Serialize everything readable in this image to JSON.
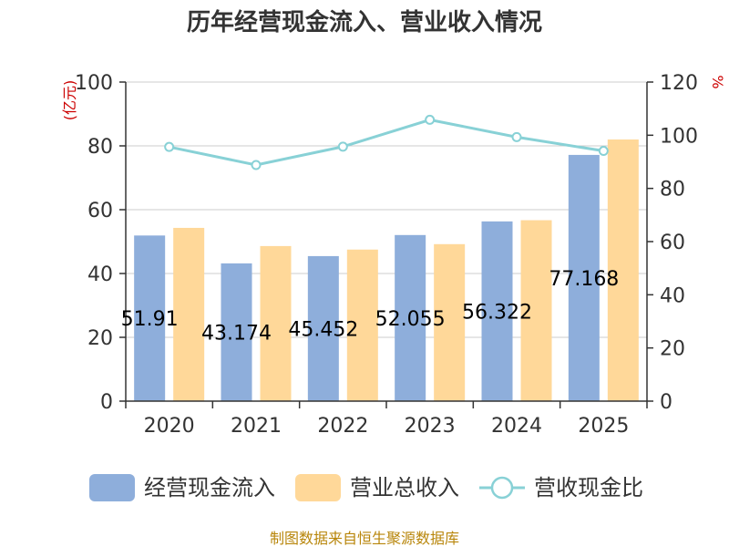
{
  "chart_data": {
    "type": "bar",
    "title": "历年经营现金流入、营业收入情况",
    "categories": [
      "2020",
      "2021",
      "2022",
      "2023",
      "2024",
      "2025"
    ],
    "y_left": {
      "unit_label": "(亿元)",
      "ylim": [
        0,
        100
      ],
      "ticks": [
        0,
        20,
        40,
        60,
        80,
        100
      ]
    },
    "y_right": {
      "unit_label": "%",
      "ylim": [
        0,
        120
      ],
      "ticks": [
        0,
        20,
        40,
        60,
        80,
        100,
        120
      ]
    },
    "grid": true,
    "legend_position": "bottom",
    "series": [
      {
        "name": "经营现金流入",
        "type": "bar",
        "axis": "left",
        "color": "#8eaedb",
        "values": [
          51.91,
          43.174,
          45.452,
          52.055,
          56.322,
          77.168
        ],
        "labels": [
          "51.91",
          "43.174",
          "45.452",
          "52.055",
          "56.322",
          "77.168"
        ]
      },
      {
        "name": "营业总收入",
        "type": "bar",
        "axis": "left",
        "color": "#ffd899",
        "values": [
          54.3,
          48.6,
          47.5,
          49.2,
          56.7,
          82.0
        ]
      },
      {
        "name": "营收现金比",
        "type": "line",
        "axis": "right",
        "color": "#88d1d6",
        "values": [
          95.6,
          88.8,
          95.7,
          105.8,
          99.3,
          94.1
        ]
      }
    ]
  },
  "source_text": "制图数据来自恒生聚源数据库",
  "colors": {
    "unit_label": "#cc0000",
    "source_text": "#b8860b",
    "grid": "#cccccc",
    "axis": "#333333"
  }
}
